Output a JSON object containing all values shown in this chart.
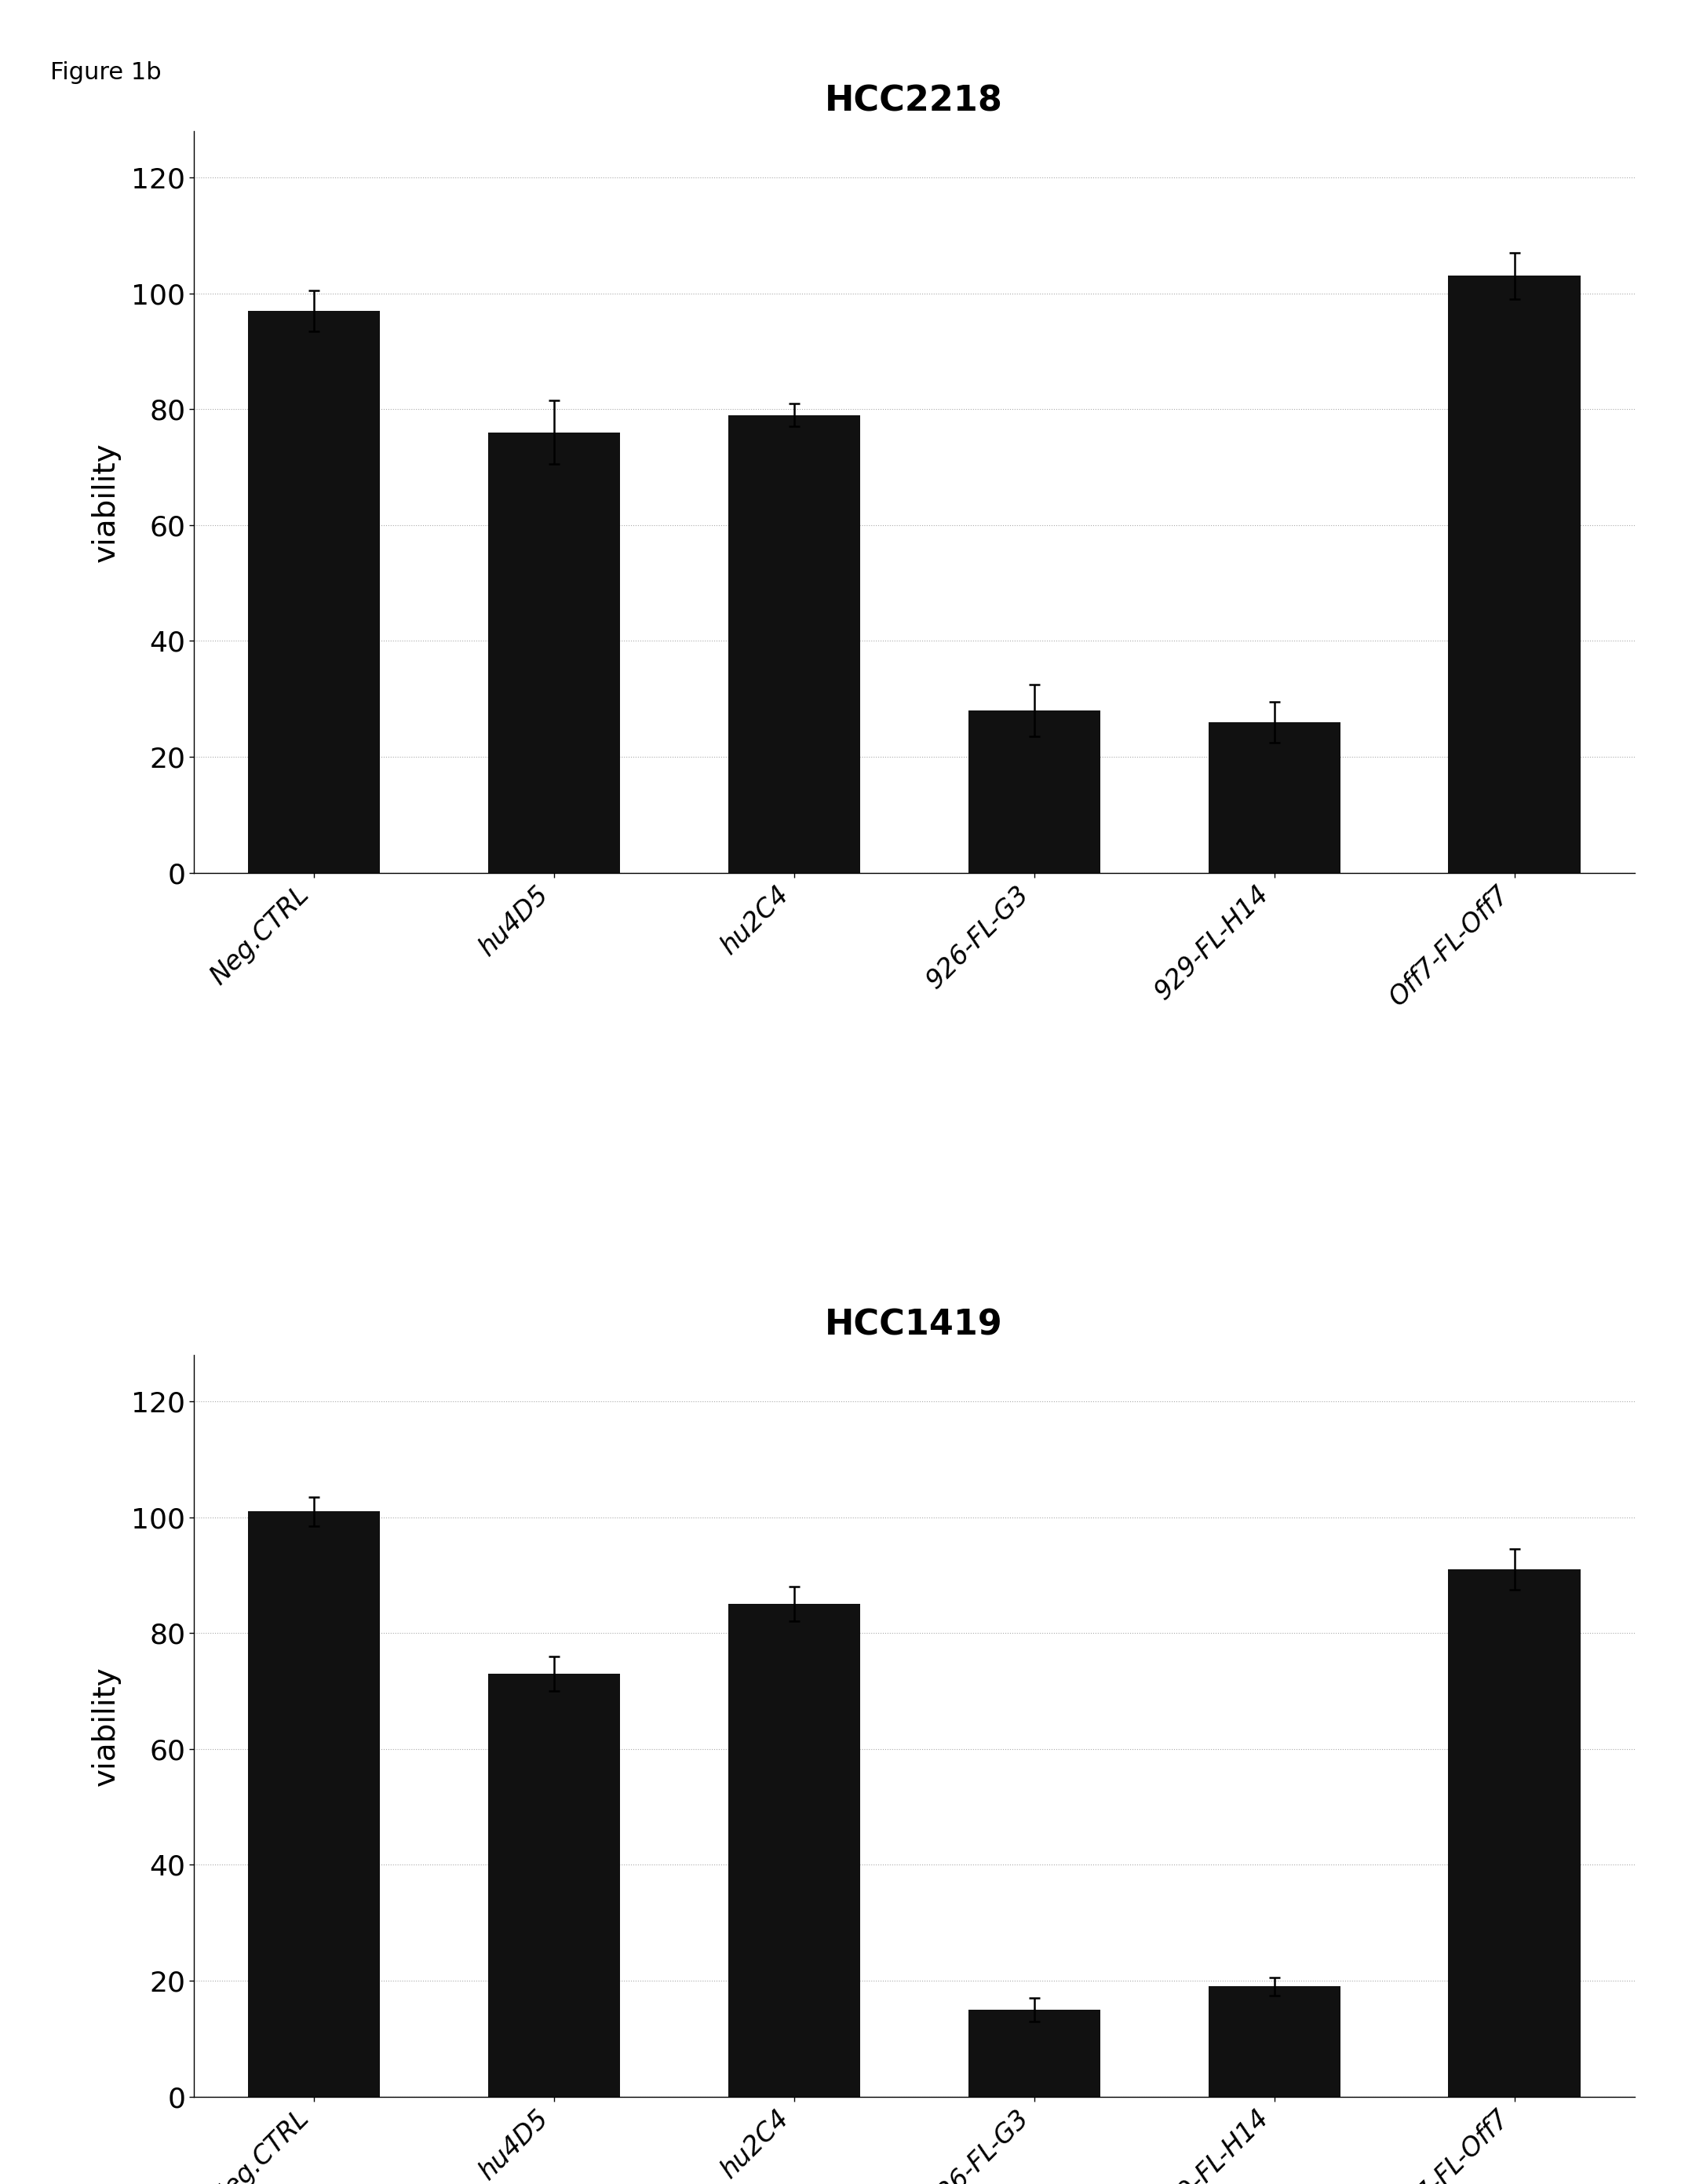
{
  "chart1_title": "HCC2218",
  "chart2_title": "HCC1419",
  "figure_label": "Figure 1b",
  "categories": [
    "Neg.CTRL",
    "hu4D5",
    "hu2C4",
    "926-FL-G3",
    "929-FL-H14",
    "Off7-FL-Off7"
  ],
  "chart1_values": [
    97.0,
    76.0,
    79.0,
    28.0,
    26.0,
    103.0
  ],
  "chart1_errors": [
    3.5,
    5.5,
    2.0,
    4.5,
    3.5,
    4.0
  ],
  "chart2_values": [
    101.0,
    73.0,
    85.0,
    15.0,
    19.0,
    91.0
  ],
  "chart2_errors": [
    2.5,
    3.0,
    3.0,
    2.0,
    1.5,
    3.5
  ],
  "bar_color": "#111111",
  "bar_width": 0.55,
  "ylabel": "viability",
  "ylim": [
    0,
    128
  ],
  "yticks": [
    0,
    20,
    40,
    60,
    80,
    100,
    120
  ],
  "dotted_gridlines": [
    0,
    20,
    40,
    60,
    80,
    100,
    120
  ],
  "background_color": "#ffffff",
  "title_fontsize": 32,
  "tick_fontsize": 26,
  "ylabel_fontsize": 28,
  "label_fontsize": 24,
  "figure_label_fontsize": 22
}
